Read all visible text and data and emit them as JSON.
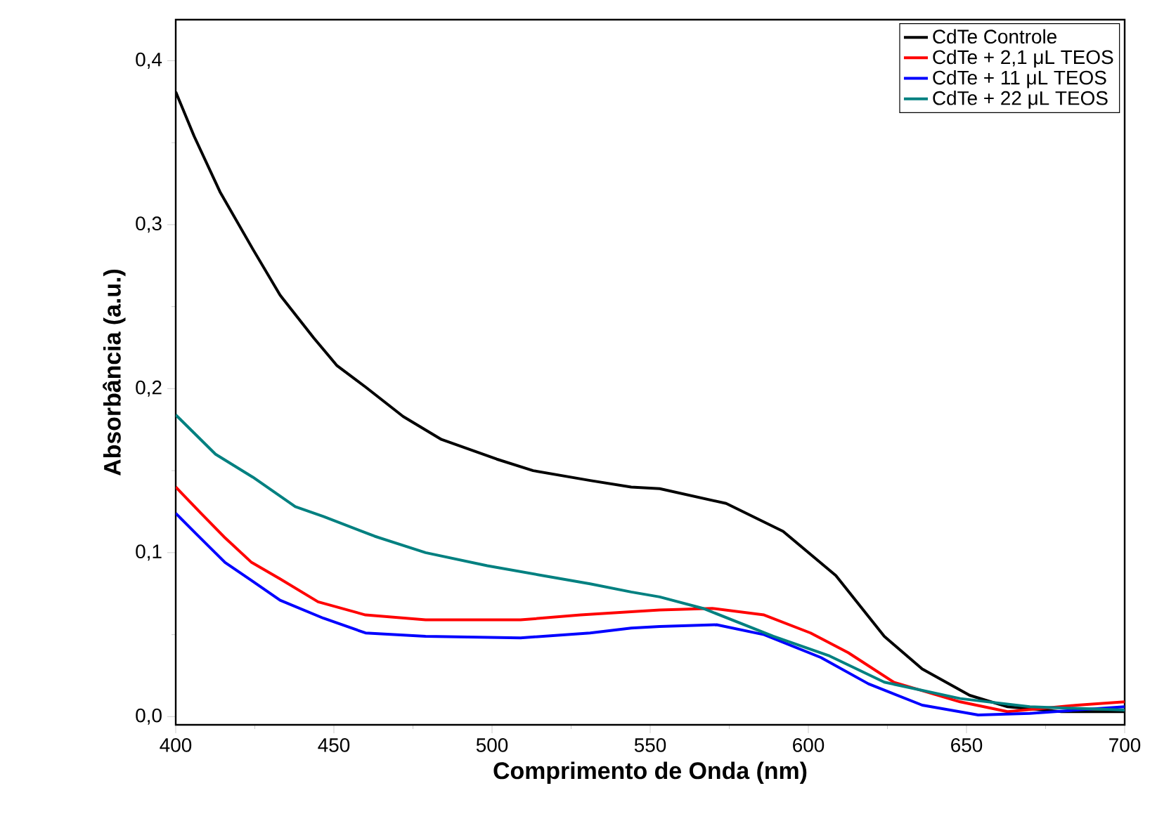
{
  "chart_data": {
    "type": "line",
    "xlabel": "Comprimento de Onda (nm)",
    "ylabel": "Absorbância (a.u.)",
    "xlim": [
      400,
      700
    ],
    "ylim": [
      -0.005,
      0.425
    ],
    "xticks": [
      400,
      450,
      500,
      550,
      600,
      650,
      700
    ],
    "yticks": [
      {
        "value": 0,
        "label": "0,0"
      },
      {
        "value": 0.1,
        "label": "0,1"
      },
      {
        "value": 0.2,
        "label": "0,2"
      },
      {
        "value": 0.3,
        "label": "0,3"
      },
      {
        "value": 0.4,
        "label": "0,4"
      }
    ],
    "grid": false,
    "legend": "top right",
    "marker": "none",
    "line_style": "solid",
    "series": [
      {
        "name": "CdTe Controle",
        "color": "#000000",
        "x": [
          400,
          405.8,
          414,
          424.4,
          433,
          443.6,
          451,
          460,
          471.9,
          484,
          501.5,
          513,
          531,
          544,
          553,
          574,
          592,
          608.7,
          624,
          636,
          651,
          663,
          680,
          700
        ],
        "values": [
          0.381,
          0.354,
          0.32,
          0.285,
          0.257,
          0.231,
          0.214,
          0.201,
          0.183,
          0.169,
          0.157,
          0.15,
          0.144,
          0.14,
          0.139,
          0.13,
          0.113,
          0.086,
          0.049,
          0.029,
          0.013,
          0.006,
          0.003,
          0.003
        ]
      },
      {
        "name": "CdTe + 2,1 μL TEOS",
        "color": "#ff0000",
        "x": [
          400,
          408,
          415.6,
          424,
          433,
          445,
          460,
          479,
          509,
          528,
          544,
          553,
          569.6,
          586,
          600.7,
          612.6,
          627,
          648,
          663,
          685,
          700
        ],
        "values": [
          0.14,
          0.124,
          0.109,
          0.094,
          0.084,
          0.07,
          0.062,
          0.059,
          0.059,
          0.062,
          0.064,
          0.065,
          0.066,
          0.062,
          0.051,
          0.039,
          0.021,
          0.009,
          0.003,
          0.007,
          0.009
        ]
      },
      {
        "name": "CdTe + 11 μL TEOS",
        "color": "#0000ff",
        "x": [
          400,
          406.7,
          415.6,
          424,
          433,
          446.7,
          460,
          479,
          509,
          531,
          544,
          553,
          571,
          586,
          604,
          619,
          636,
          653.7,
          670,
          700
        ],
        "values": [
          0.124,
          0.111,
          0.094,
          0.083,
          0.071,
          0.06,
          0.051,
          0.049,
          0.048,
          0.051,
          0.054,
          0.055,
          0.056,
          0.05,
          0.036,
          0.02,
          0.007,
          0.001,
          0.002,
          0.006
        ]
      },
      {
        "name": "CdTe + 22 μL TEOS",
        "color": "#008080",
        "x": [
          400,
          412.6,
          424.4,
          437.8,
          446.7,
          462.9,
          479,
          498.5,
          516,
          531,
          544,
          553,
          566.7,
          588.9,
          606.7,
          624,
          648,
          670,
          700
        ],
        "values": [
          0.184,
          0.16,
          0.146,
          0.128,
          0.122,
          0.11,
          0.1,
          0.092,
          0.086,
          0.081,
          0.076,
          0.073,
          0.066,
          0.049,
          0.037,
          0.021,
          0.011,
          0.006,
          0.004
        ]
      }
    ]
  }
}
